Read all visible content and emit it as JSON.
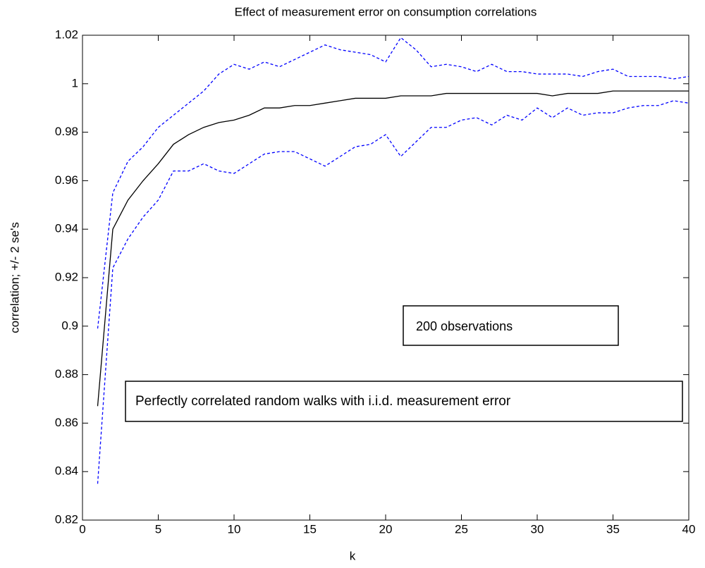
{
  "chart_data": {
    "type": "line",
    "title": "Effect of measurement error on consumption correlations",
    "x_label": "k",
    "y_label": "correlation; +/- 2 se's",
    "x": [
      1,
      2,
      3,
      4,
      5,
      6,
      7,
      8,
      9,
      10,
      11,
      12,
      13,
      14,
      15,
      16,
      17,
      18,
      19,
      20,
      21,
      22,
      23,
      24,
      25,
      26,
      27,
      28,
      29,
      30,
      31,
      32,
      33,
      34,
      35,
      36,
      37,
      38,
      39,
      40
    ],
    "series": [
      {
        "color": "#000000",
        "dash": "solid",
        "values": [
          0.867,
          0.94,
          0.952,
          0.96,
          0.967,
          0.975,
          0.979,
          0.982,
          0.984,
          0.985,
          0.987,
          0.99,
          0.99,
          0.991,
          0.991,
          0.992,
          0.993,
          0.994,
          0.994,
          0.994,
          0.995,
          0.995,
          0.995,
          0.996,
          0.996,
          0.996,
          0.996,
          0.996,
          0.996,
          0.996,
          0.995,
          0.996,
          0.996,
          0.996,
          0.997,
          0.997,
          0.997,
          0.997,
          0.997,
          0.997
        ]
      },
      {
        "color": "#0000ff",
        "dash": "dashed",
        "values": [
          0.899,
          0.955,
          0.968,
          0.974,
          0.982,
          0.987,
          0.992,
          0.997,
          1.004,
          1.008,
          1.006,
          1.009,
          1.007,
          1.01,
          1.013,
          1.016,
          1.014,
          1.013,
          1.012,
          1.009,
          1.019,
          1.014,
          1.007,
          1.008,
          1.007,
          1.005,
          1.008,
          1.005,
          1.005,
          1.004,
          1.004,
          1.004,
          1.003,
          1.005,
          1.006,
          1.003,
          1.003,
          1.003,
          1.002,
          1.003
        ]
      },
      {
        "color": "#0000ff",
        "dash": "dashed",
        "values": [
          0.835,
          0.924,
          0.936,
          0.945,
          0.952,
          0.964,
          0.964,
          0.967,
          0.964,
          0.963,
          0.967,
          0.971,
          0.972,
          0.972,
          0.969,
          0.966,
          0.97,
          0.974,
          0.975,
          0.979,
          0.97,
          0.976,
          0.982,
          0.982,
          0.985,
          0.986,
          0.983,
          0.987,
          0.985,
          0.99,
          0.986,
          0.99,
          0.987,
          0.988,
          0.988,
          0.99,
          0.991,
          0.991,
          0.993,
          0.992
        ]
      }
    ],
    "xlim": [
      0,
      40
    ],
    "xticks": [
      0,
      5,
      10,
      15,
      20,
      25,
      30,
      35,
      40
    ],
    "ylim": [
      0.82,
      1.02
    ],
    "yticks": [
      0.82,
      0.84,
      0.86,
      0.88,
      0.9,
      0.92,
      0.94,
      0.96,
      0.98,
      1,
      1.02
    ],
    "grid": false,
    "annotations": [
      "200 observations",
      "Perfectly correlated random walks with i.i.d. measurement error"
    ]
  }
}
